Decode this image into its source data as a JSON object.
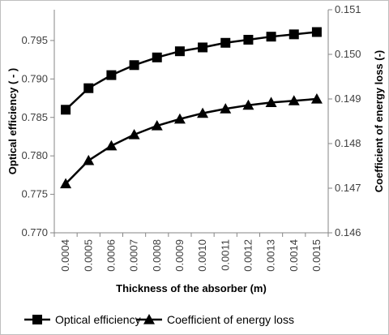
{
  "chart_data": {
    "type": "line",
    "x": [
      "0.0004",
      "0.0005",
      "0.0006",
      "0.0007",
      "0.0008",
      "0.0009",
      "0.0010",
      "0.0011",
      "0.0012",
      "0.0013",
      "0.0014",
      "0.0015"
    ],
    "xlabel": "Thickness of the absorber (m)",
    "y_left": {
      "label": "Optical efficiency ( - )",
      "lim": [
        0.77,
        0.799
      ],
      "ticks": [
        "0.770",
        "0.775",
        "0.780",
        "0.785",
        "0.790",
        "0.795"
      ]
    },
    "y_right": {
      "label": "Coefficient of energy loss (-)",
      "lim": [
        0.146,
        0.151
      ],
      "ticks": [
        "0.146",
        "0.147",
        "0.148",
        "0.149",
        "0.150",
        "0.151"
      ]
    },
    "series": [
      {
        "name": "Optical efficiency",
        "axis": "left",
        "marker": "square",
        "values": [
          0.786,
          0.7888,
          0.7905,
          0.7918,
          0.7928,
          0.7936,
          0.7941,
          0.7947,
          0.7951,
          0.7955,
          0.7958,
          0.7961
        ]
      },
      {
        "name": "Coefficient of energy loss",
        "axis": "right",
        "marker": "triangle",
        "values": [
          0.1471,
          0.14762,
          0.14795,
          0.1482,
          0.1484,
          0.14855,
          0.14868,
          0.14878,
          0.14886,
          0.14892,
          0.14896,
          0.149
        ]
      }
    ],
    "grid": false,
    "legend_position": "bottom",
    "colors": {
      "line": "#000000",
      "axis": "#868686",
      "text": "#404040"
    }
  }
}
